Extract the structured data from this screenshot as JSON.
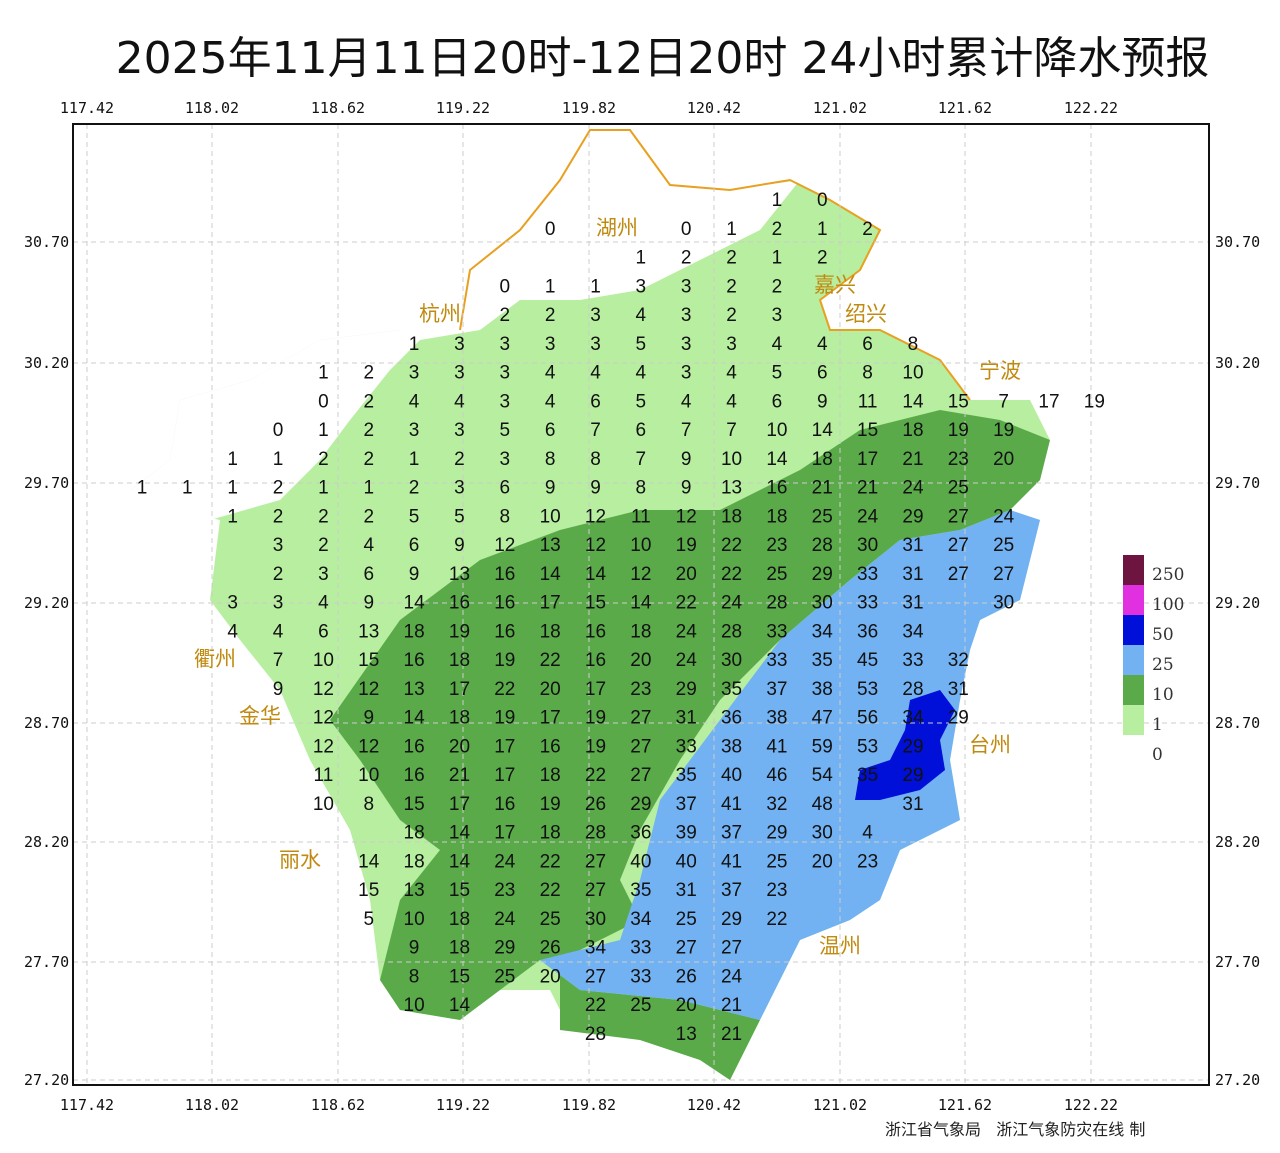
{
  "title": "2025年11月11日20时-12日20时 24小时累计降水预报",
  "credit": "浙江省气象局   浙江气象防灾在线 制",
  "axes": {
    "lon_ticks": [
      "117.42",
      "118.02",
      "118.62",
      "119.22",
      "119.82",
      "120.42",
      "121.02",
      "121.62",
      "122.22"
    ],
    "lat_ticks": [
      "30.70",
      "30.20",
      "29.70",
      "29.20",
      "28.70",
      "28.20",
      "27.70",
      "27.20"
    ]
  },
  "legend": [
    {
      "label": "250",
      "color": "#6e1440"
    },
    {
      "label": "100",
      "color": "#e030e0"
    },
    {
      "label": "50",
      "color": "#0010d8"
    },
    {
      "label": "25",
      "color": "#72b2f2"
    },
    {
      "label": "10",
      "color": "#5aaa4a"
    },
    {
      "label": "1",
      "color": "#b8eea0"
    },
    {
      "label": "0",
      "color": ""
    }
  ],
  "colors": {
    "boundary": "#e8a020",
    "city": "#c08a10",
    "white": "#ffffff"
  },
  "cities": [
    "湖州",
    "嘉兴",
    "杭州",
    "绍兴",
    "宁波",
    "金华",
    "衢州",
    "台州",
    "丽水",
    "温州"
  ],
  "grid_rows": [
    [
      [
        14,
        "1"
      ],
      [
        15,
        "0"
      ]
    ],
    [
      [
        9,
        "0"
      ],
      [
        12,
        "0"
      ],
      [
        13,
        "1"
      ],
      [
        14,
        "2"
      ],
      [
        15,
        "1"
      ],
      [
        16,
        "2"
      ]
    ],
    [
      [
        11,
        "1"
      ],
      [
        12,
        "2"
      ],
      [
        13,
        "2"
      ],
      [
        14,
        "1"
      ],
      [
        15,
        "2"
      ]
    ],
    [
      [
        8,
        "0"
      ],
      [
        9,
        "1"
      ],
      [
        10,
        "1"
      ],
      [
        11,
        "3"
      ],
      [
        12,
        "3"
      ],
      [
        13,
        "2"
      ],
      [
        14,
        "2"
      ]
    ],
    [
      [
        8,
        "2"
      ],
      [
        9,
        "2"
      ],
      [
        10,
        "3"
      ],
      [
        11,
        "4"
      ],
      [
        12,
        "3"
      ],
      [
        13,
        "2"
      ],
      [
        14,
        "3"
      ]
    ],
    [
      [
        6,
        "1"
      ],
      [
        7,
        "3"
      ],
      [
        8,
        "3"
      ],
      [
        9,
        "3"
      ],
      [
        10,
        "3"
      ],
      [
        11,
        "5"
      ],
      [
        12,
        "3"
      ],
      [
        13,
        "3"
      ],
      [
        14,
        "4"
      ],
      [
        15,
        "4"
      ],
      [
        16,
        "6"
      ],
      [
        17,
        "8"
      ]
    ],
    [
      [
        4,
        "1"
      ],
      [
        5,
        "2"
      ],
      [
        6,
        "3"
      ],
      [
        7,
        "3"
      ],
      [
        8,
        "3"
      ],
      [
        9,
        "4"
      ],
      [
        10,
        "4"
      ],
      [
        11,
        "4"
      ],
      [
        12,
        "3"
      ],
      [
        13,
        "4"
      ],
      [
        14,
        "5"
      ],
      [
        15,
        "6"
      ],
      [
        16,
        "8"
      ],
      [
        17,
        "10"
      ]
    ],
    [
      [
        4,
        "0"
      ],
      [
        5,
        "2"
      ],
      [
        6,
        "4"
      ],
      [
        7,
        "4"
      ],
      [
        8,
        "3"
      ],
      [
        9,
        "4"
      ],
      [
        10,
        "6"
      ],
      [
        11,
        "5"
      ],
      [
        12,
        "4"
      ],
      [
        13,
        "4"
      ],
      [
        14,
        "6"
      ],
      [
        15,
        "9"
      ],
      [
        16,
        "11"
      ],
      [
        17,
        "14"
      ],
      [
        18,
        "15"
      ],
      [
        19,
        "7"
      ],
      [
        20,
        "17"
      ],
      [
        21,
        "19"
      ]
    ],
    [
      [
        3,
        "0"
      ],
      [
        4,
        "1"
      ],
      [
        5,
        "2"
      ],
      [
        6,
        "3"
      ],
      [
        7,
        "3"
      ],
      [
        8,
        "5"
      ],
      [
        9,
        "6"
      ],
      [
        10,
        "7"
      ],
      [
        11,
        "6"
      ],
      [
        12,
        "7"
      ],
      [
        13,
        "7"
      ],
      [
        14,
        "10"
      ],
      [
        15,
        "14"
      ],
      [
        16,
        "15"
      ],
      [
        17,
        "18"
      ],
      [
        18,
        "19"
      ],
      [
        19,
        "19"
      ]
    ],
    [
      [
        2,
        "1"
      ],
      [
        3,
        "1"
      ],
      [
        4,
        "2"
      ],
      [
        5,
        "2"
      ],
      [
        6,
        "1"
      ],
      [
        7,
        "2"
      ],
      [
        8,
        "3"
      ],
      [
        9,
        "8"
      ],
      [
        10,
        "8"
      ],
      [
        11,
        "7"
      ],
      [
        12,
        "9"
      ],
      [
        13,
        "10"
      ],
      [
        14,
        "14"
      ],
      [
        15,
        "18"
      ],
      [
        16,
        "17"
      ],
      [
        17,
        "21"
      ],
      [
        18,
        "23"
      ],
      [
        19,
        "20"
      ]
    ],
    [
      [
        0,
        "1"
      ],
      [
        1,
        "1"
      ],
      [
        2,
        "1"
      ],
      [
        3,
        "2"
      ],
      [
        4,
        "1"
      ],
      [
        5,
        "1"
      ],
      [
        6,
        "2"
      ],
      [
        7,
        "3"
      ],
      [
        8,
        "6"
      ],
      [
        9,
        "9"
      ],
      [
        10,
        "9"
      ],
      [
        11,
        "8"
      ],
      [
        12,
        "9"
      ],
      [
        13,
        "13"
      ],
      [
        14,
        "16"
      ],
      [
        15,
        "21"
      ],
      [
        16,
        "21"
      ],
      [
        17,
        "24"
      ],
      [
        18,
        "25"
      ]
    ],
    [
      [
        2,
        "1"
      ],
      [
        3,
        "2"
      ],
      [
        4,
        "2"
      ],
      [
        5,
        "2"
      ],
      [
        6,
        "5"
      ],
      [
        7,
        "5"
      ],
      [
        8,
        "8"
      ],
      [
        9,
        "10"
      ],
      [
        10,
        "12"
      ],
      [
        11,
        "11"
      ],
      [
        12,
        "12"
      ],
      [
        13,
        "18"
      ],
      [
        14,
        "18"
      ],
      [
        15,
        "25"
      ],
      [
        16,
        "24"
      ],
      [
        17,
        "29"
      ],
      [
        18,
        "27"
      ],
      [
        19,
        "24"
      ]
    ],
    [
      [
        3,
        "3"
      ],
      [
        4,
        "2"
      ],
      [
        5,
        "4"
      ],
      [
        6,
        "6"
      ],
      [
        7,
        "9"
      ],
      [
        8,
        "12"
      ],
      [
        9,
        "13"
      ],
      [
        10,
        "12"
      ],
      [
        11,
        "10"
      ],
      [
        12,
        "19"
      ],
      [
        13,
        "22"
      ],
      [
        14,
        "23"
      ],
      [
        15,
        "28"
      ],
      [
        16,
        "30"
      ],
      [
        17,
        "31"
      ],
      [
        18,
        "27"
      ],
      [
        19,
        "25"
      ]
    ],
    [
      [
        3,
        "2"
      ],
      [
        4,
        "3"
      ],
      [
        5,
        "6"
      ],
      [
        6,
        "9"
      ],
      [
        7,
        "13"
      ],
      [
        8,
        "16"
      ],
      [
        9,
        "14"
      ],
      [
        10,
        "14"
      ],
      [
        11,
        "12"
      ],
      [
        12,
        "20"
      ],
      [
        13,
        "22"
      ],
      [
        14,
        "25"
      ],
      [
        15,
        "29"
      ],
      [
        16,
        "33"
      ],
      [
        17,
        "31"
      ],
      [
        18,
        "27"
      ],
      [
        19,
        "27"
      ]
    ],
    [
      [
        2,
        "3"
      ],
      [
        3,
        "3"
      ],
      [
        4,
        "4"
      ],
      [
        5,
        "9"
      ],
      [
        6,
        "14"
      ],
      [
        7,
        "16"
      ],
      [
        8,
        "16"
      ],
      [
        9,
        "17"
      ],
      [
        10,
        "15"
      ],
      [
        11,
        "14"
      ],
      [
        12,
        "22"
      ],
      [
        13,
        "24"
      ],
      [
        14,
        "28"
      ],
      [
        15,
        "30"
      ],
      [
        16,
        "33"
      ],
      [
        17,
        "31"
      ],
      [
        19,
        "30"
      ]
    ],
    [
      [
        2,
        "4"
      ],
      [
        3,
        "4"
      ],
      [
        4,
        "6"
      ],
      [
        5,
        "13"
      ],
      [
        6,
        "18"
      ],
      [
        7,
        "19"
      ],
      [
        8,
        "16"
      ],
      [
        9,
        "18"
      ],
      [
        10,
        "16"
      ],
      [
        11,
        "18"
      ],
      [
        12,
        "24"
      ],
      [
        13,
        "28"
      ],
      [
        14,
        "33"
      ],
      [
        15,
        "34"
      ],
      [
        16,
        "36"
      ],
      [
        17,
        "34"
      ]
    ],
    [
      [
        3,
        "7"
      ],
      [
        4,
        "10"
      ],
      [
        5,
        "15"
      ],
      [
        6,
        "16"
      ],
      [
        7,
        "18"
      ],
      [
        8,
        "19"
      ],
      [
        9,
        "22"
      ],
      [
        10,
        "16"
      ],
      [
        11,
        "20"
      ],
      [
        12,
        "24"
      ],
      [
        13,
        "30"
      ],
      [
        14,
        "33"
      ],
      [
        15,
        "35"
      ],
      [
        16,
        "45"
      ],
      [
        17,
        "33"
      ],
      [
        18,
        "32"
      ]
    ],
    [
      [
        3,
        "9"
      ],
      [
        4,
        "12"
      ],
      [
        5,
        "12"
      ],
      [
        6,
        "13"
      ],
      [
        7,
        "17"
      ],
      [
        8,
        "22"
      ],
      [
        9,
        "20"
      ],
      [
        10,
        "17"
      ],
      [
        11,
        "23"
      ],
      [
        12,
        "29"
      ],
      [
        13,
        "35"
      ],
      [
        14,
        "37"
      ],
      [
        15,
        "38"
      ],
      [
        16,
        "53"
      ],
      [
        17,
        "28"
      ],
      [
        18,
        "31"
      ]
    ],
    [
      [
        4,
        "12"
      ],
      [
        5,
        "9"
      ],
      [
        6,
        "14"
      ],
      [
        7,
        "18"
      ],
      [
        8,
        "19"
      ],
      [
        9,
        "17"
      ],
      [
        10,
        "19"
      ],
      [
        11,
        "27"
      ],
      [
        12,
        "31"
      ],
      [
        13,
        "36"
      ],
      [
        14,
        "38"
      ],
      [
        15,
        "47"
      ],
      [
        16,
        "56"
      ],
      [
        17,
        "34"
      ],
      [
        18,
        "29"
      ]
    ],
    [
      [
        4,
        "12"
      ],
      [
        5,
        "12"
      ],
      [
        6,
        "16"
      ],
      [
        7,
        "20"
      ],
      [
        8,
        "17"
      ],
      [
        9,
        "16"
      ],
      [
        10,
        "19"
      ],
      [
        11,
        "27"
      ],
      [
        12,
        "33"
      ],
      [
        13,
        "38"
      ],
      [
        14,
        "41"
      ],
      [
        15,
        "59"
      ],
      [
        16,
        "53"
      ],
      [
        17,
        "29"
      ]
    ],
    [
      [
        4,
        "11"
      ],
      [
        5,
        "10"
      ],
      [
        6,
        "16"
      ],
      [
        7,
        "21"
      ],
      [
        8,
        "17"
      ],
      [
        9,
        "18"
      ],
      [
        10,
        "22"
      ],
      [
        11,
        "27"
      ],
      [
        12,
        "35"
      ],
      [
        13,
        "40"
      ],
      [
        14,
        "46"
      ],
      [
        15,
        "54"
      ],
      [
        16,
        "35"
      ],
      [
        17,
        "29"
      ]
    ],
    [
      [
        4,
        "10"
      ],
      [
        5,
        "8"
      ],
      [
        6,
        "15"
      ],
      [
        7,
        "17"
      ],
      [
        8,
        "16"
      ],
      [
        9,
        "19"
      ],
      [
        10,
        "26"
      ],
      [
        11,
        "29"
      ],
      [
        12,
        "37"
      ],
      [
        13,
        "41"
      ],
      [
        14,
        "32"
      ],
      [
        15,
        "48"
      ],
      [
        17,
        "31"
      ]
    ],
    [
      [
        6,
        "18"
      ],
      [
        7,
        "14"
      ],
      [
        8,
        "17"
      ],
      [
        9,
        "18"
      ],
      [
        10,
        "28"
      ],
      [
        11,
        "36"
      ],
      [
        12,
        "39"
      ],
      [
        13,
        "37"
      ],
      [
        14,
        "29"
      ],
      [
        15,
        "30"
      ],
      [
        16,
        "4"
      ]
    ],
    [
      [
        5,
        "14"
      ],
      [
        6,
        "18"
      ],
      [
        7,
        "14"
      ],
      [
        8,
        "24"
      ],
      [
        9,
        "22"
      ],
      [
        10,
        "27"
      ],
      [
        11,
        "40"
      ],
      [
        12,
        "40"
      ],
      [
        13,
        "41"
      ],
      [
        14,
        "25"
      ],
      [
        15,
        "20"
      ],
      [
        16,
        "23"
      ]
    ],
    [
      [
        5,
        "15"
      ],
      [
        6,
        "13"
      ],
      [
        7,
        "15"
      ],
      [
        8,
        "23"
      ],
      [
        9,
        "22"
      ],
      [
        10,
        "27"
      ],
      [
        11,
        "35"
      ],
      [
        12,
        "31"
      ],
      [
        13,
        "37"
      ],
      [
        14,
        "23"
      ]
    ],
    [
      [
        5,
        "5"
      ],
      [
        6,
        "10"
      ],
      [
        7,
        "18"
      ],
      [
        8,
        "24"
      ],
      [
        9,
        "25"
      ],
      [
        10,
        "30"
      ],
      [
        11,
        "34"
      ],
      [
        12,
        "25"
      ],
      [
        13,
        "29"
      ],
      [
        14,
        "22"
      ]
    ],
    [
      [
        6,
        "9"
      ],
      [
        7,
        "18"
      ],
      [
        8,
        "29"
      ],
      [
        9,
        "26"
      ],
      [
        10,
        "34"
      ],
      [
        11,
        "33"
      ],
      [
        12,
        "27"
      ],
      [
        13,
        "27"
      ]
    ],
    [
      [
        6,
        "8"
      ],
      [
        7,
        "15"
      ],
      [
        8,
        "25"
      ],
      [
        9,
        "20"
      ],
      [
        10,
        "27"
      ],
      [
        11,
        "33"
      ],
      [
        12,
        "26"
      ],
      [
        13,
        "24"
      ]
    ],
    [
      [
        6,
        "10"
      ],
      [
        7,
        "14"
      ],
      [
        10,
        "22"
      ],
      [
        11,
        "25"
      ],
      [
        12,
        "20"
      ],
      [
        13,
        "21"
      ]
    ],
    [
      [
        10,
        "28"
      ],
      [
        12,
        "13"
      ],
      [
        13,
        "21"
      ]
    ]
  ]
}
